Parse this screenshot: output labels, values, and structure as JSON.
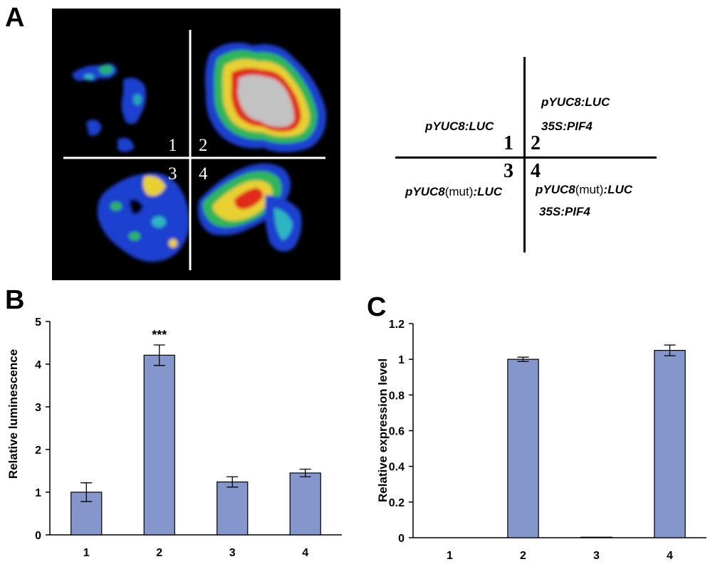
{
  "panels": {
    "a": {
      "letter": "A"
    },
    "b": {
      "letter": "B"
    },
    "c": {
      "letter": "C"
    }
  },
  "image_quadrants": [
    "1",
    "2",
    "3",
    "4"
  ],
  "diagram": {
    "q1": {
      "line1": "pYUC8:LUC",
      "num": "1"
    },
    "q2": {
      "line1": "pYUC8:LUC",
      "line2": "35S:PIF4",
      "num": "2"
    },
    "q3": {
      "pre": "pYUC8",
      "mut": "(mut)",
      "post": ":LUC",
      "num": "3"
    },
    "q4": {
      "pre": "pYUC8",
      "mut": "(mut)",
      "post": ":LUC",
      "line2": "35S:PIF4",
      "num": "4"
    }
  },
  "colors": {
    "bar_fill": "#8496cc",
    "bar_stroke": "#000000"
  },
  "chart_data": [
    {
      "type": "bar",
      "categories": [
        "1",
        "2",
        "3",
        "4"
      ],
      "values": [
        1.0,
        4.21,
        1.24,
        1.45
      ],
      "errors": [
        0.22,
        0.24,
        0.12,
        0.09
      ],
      "annotations": [
        "",
        "***",
        "",
        ""
      ],
      "title": "",
      "xlabel": "",
      "ylabel": "Relative luminescence",
      "ylim": [
        0,
        5
      ],
      "yticks": [
        0,
        1,
        2,
        3,
        4,
        5
      ],
      "ytick_labels": [
        "0",
        "1",
        "2",
        "3",
        "4",
        "5"
      ]
    },
    {
      "type": "bar",
      "categories": [
        "1",
        "2",
        "3",
        "4"
      ],
      "values": [
        0.0,
        1.0,
        0.003,
        1.05
      ],
      "errors": [
        0.0,
        0.012,
        0.0,
        0.03
      ],
      "annotations": [
        "",
        "",
        "",
        ""
      ],
      "title": "",
      "xlabel": "",
      "ylabel": "Relative expression level",
      "ylim": [
        0,
        1.2
      ],
      "yticks": [
        0,
        0.2,
        0.4,
        0.6,
        0.8,
        1.0,
        1.2
      ],
      "ytick_labels": [
        "0",
        "0.2",
        "0.4",
        "0.6",
        "0.8",
        "1",
        "1.2"
      ]
    }
  ]
}
